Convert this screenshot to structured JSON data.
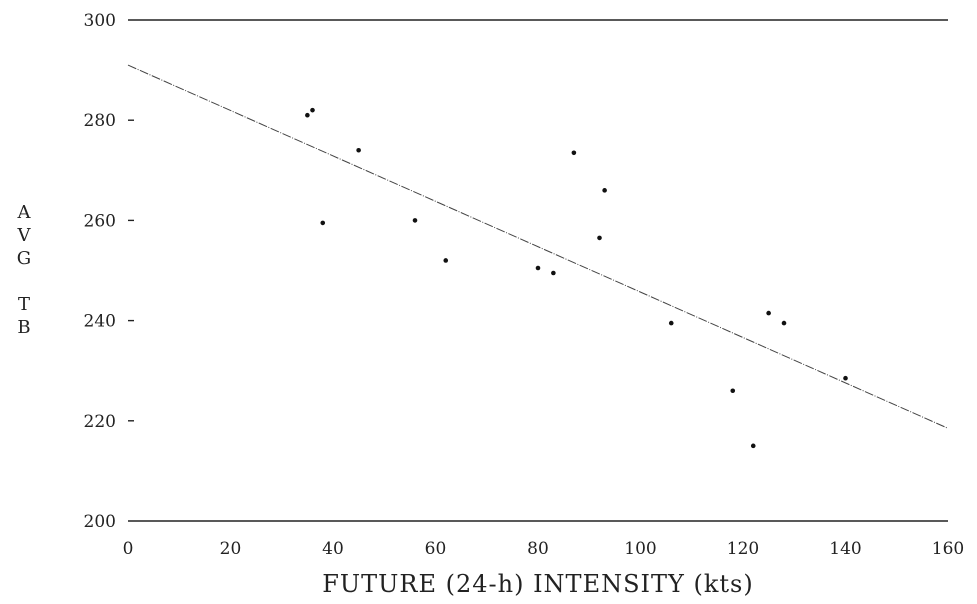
{
  "chart_data": {
    "type": "scatter",
    "title": "",
    "xlabel": "FUTURE (24-h) INTENSITY (kts)",
    "ylabel": "AVG TB",
    "ylabel_lines": [
      "A",
      "V",
      "G",
      "",
      "T",
      "B"
    ],
    "xlim": [
      0,
      160
    ],
    "ylim": [
      200,
      300
    ],
    "x_ticks": [
      0,
      20,
      40,
      60,
      80,
      100,
      120,
      140,
      160
    ],
    "y_ticks": [
      200,
      220,
      240,
      260,
      280,
      300
    ],
    "grid": false,
    "points": [
      {
        "x": 35,
        "y": 281
      },
      {
        "x": 36,
        "y": 282
      },
      {
        "x": 38,
        "y": 259.5
      },
      {
        "x": 45,
        "y": 274
      },
      {
        "x": 56,
        "y": 260
      },
      {
        "x": 62,
        "y": 252
      },
      {
        "x": 80,
        "y": 250.5
      },
      {
        "x": 83,
        "y": 249.5
      },
      {
        "x": 87,
        "y": 273.5
      },
      {
        "x": 92,
        "y": 256.5
      },
      {
        "x": 93,
        "y": 266
      },
      {
        "x": 106,
        "y": 239.5
      },
      {
        "x": 118,
        "y": 226
      },
      {
        "x": 122,
        "y": 215
      },
      {
        "x": 125,
        "y": 241.5
      },
      {
        "x": 128,
        "y": 239.5
      },
      {
        "x": 140,
        "y": 228.5
      }
    ],
    "regression_line": {
      "x": [
        0,
        160
      ],
      "y": [
        291,
        218.5
      ]
    }
  }
}
